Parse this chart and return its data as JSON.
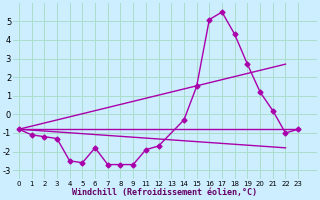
{
  "xlabel": "Windchill (Refroidissement éolien,°C)",
  "background_color": "#cceeff",
  "grid_color": "#aaddcc",
  "line_color": "#aa00aa",
  "xlim": [
    -0.5,
    23.5
  ],
  "ylim": [
    -3.5,
    6.0
  ],
  "xtick_labels": [
    "0",
    "1",
    "2",
    "3",
    "4",
    "5",
    "6",
    "7",
    "8",
    "9",
    "11",
    "12",
    "13",
    "14",
    "15",
    "16",
    "17",
    "18",
    "19",
    "20",
    "21",
    "22",
    "23"
  ],
  "xtick_positions": [
    0,
    1,
    2,
    3,
    4,
    5,
    6,
    7,
    8,
    9,
    10,
    11,
    12,
    13,
    14,
    15,
    16,
    17,
    18,
    19,
    20,
    21,
    22
  ],
  "yticks": [
    -3,
    -2,
    -1,
    0,
    1,
    2,
    3,
    4,
    5
  ],
  "series_main": {
    "x": [
      0,
      1,
      2,
      3,
      4,
      5,
      6,
      7,
      8,
      9,
      10,
      11,
      13,
      14,
      15,
      16,
      17,
      18,
      19,
      20,
      21,
      22
    ],
    "y": [
      -0.8,
      -1.1,
      -1.2,
      -1.3,
      -2.5,
      -2.6,
      -1.8,
      -2.7,
      -2.7,
      -2.7,
      -1.9,
      -1.7,
      -0.3,
      1.5,
      5.1,
      5.5,
      4.3,
      2.7,
      1.2,
      0.2,
      -1.0,
      -0.8
    ]
  },
  "series_flat": {
    "x": [
      0,
      22
    ],
    "y": [
      -0.8,
      -0.8
    ]
  },
  "series_up": {
    "x": [
      0,
      21
    ],
    "y": [
      -0.8,
      2.7
    ]
  },
  "series_down": {
    "x": [
      0,
      21
    ],
    "y": [
      -0.8,
      -1.8
    ]
  }
}
